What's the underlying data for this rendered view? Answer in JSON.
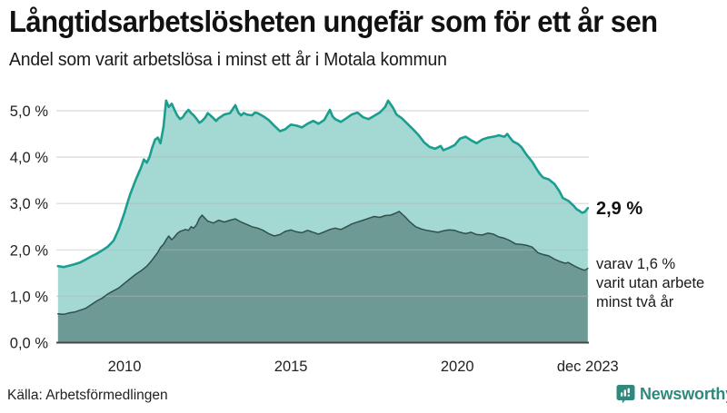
{
  "header": {
    "title": "Långtidsarbetslösheten ungefär som för ett år sen",
    "subtitle": "Andel som varit arbetslösa i minst ett år i Motala kommun"
  },
  "annotations": {
    "end_value_label": "2,9 %",
    "secondary_line1": "varav 1,6 %",
    "secondary_line2": "varit utan arbete",
    "secondary_line3": "minst två år"
  },
  "footer": {
    "source": "Källa: Arbetsförmedlingen",
    "brand_name": "Newsworthy"
  },
  "colors": {
    "accent_teal": "#1b9e8f",
    "area_teal_fill": "#1b9e8f",
    "dark_line": "#30504b",
    "area_dark_fill": "#234640",
    "grid": "#b4b4b4",
    "axis_baseline": "#474747",
    "tick_text": "#222222",
    "brand_teal": "#2e8a7c"
  },
  "chart_data": {
    "type": "area",
    "title": "Långtidsarbetslösheten ungefär som för ett år sen",
    "subtitle": "Andel som varit arbetslösa i minst ett år i Motala kommun",
    "xlabel": "",
    "ylabel": "",
    "ylim": [
      0,
      5.45
    ],
    "xlim": [
      2008.0,
      2023.92
    ],
    "grid": true,
    "legend_position": "none",
    "y_ticks": [
      {
        "label": "0,0 %",
        "value": 0
      },
      {
        "label": "1,0 %",
        "value": 1
      },
      {
        "label": "2,0 %",
        "value": 2
      },
      {
        "label": "3,0 %",
        "value": 3
      },
      {
        "label": "4,0 %",
        "value": 4
      },
      {
        "label": "5,0 %",
        "value": 5
      }
    ],
    "x_ticks": [
      {
        "label": "2010",
        "year": 2010
      },
      {
        "label": "2015",
        "year": 2015
      },
      {
        "label": "2020",
        "year": 2020
      },
      {
        "label": "dec 2023",
        "year": 2023.92
      }
    ],
    "series": [
      {
        "name": "Arbetslösa minst ett år",
        "end_value": 2.9,
        "line_color": "#1b9e8f",
        "line_width": 2.6,
        "fill_color": "#1b9e8f",
        "fill_opacity": 0.4,
        "points": [
          [
            2008.0,
            1.65
          ],
          [
            2008.17,
            1.63
          ],
          [
            2008.33,
            1.66
          ],
          [
            2008.5,
            1.69
          ],
          [
            2008.67,
            1.73
          ],
          [
            2008.83,
            1.79
          ],
          [
            2009.0,
            1.86
          ],
          [
            2009.17,
            1.92
          ],
          [
            2009.33,
            1.99
          ],
          [
            2009.5,
            2.07
          ],
          [
            2009.67,
            2.2
          ],
          [
            2009.83,
            2.45
          ],
          [
            2010.0,
            2.8
          ],
          [
            2010.08,
            3.0
          ],
          [
            2010.17,
            3.2
          ],
          [
            2010.33,
            3.5
          ],
          [
            2010.5,
            3.78
          ],
          [
            2010.58,
            3.95
          ],
          [
            2010.67,
            3.88
          ],
          [
            2010.75,
            4.0
          ],
          [
            2010.83,
            4.2
          ],
          [
            2010.92,
            4.38
          ],
          [
            2011.0,
            4.42
          ],
          [
            2011.08,
            4.3
          ],
          [
            2011.17,
            4.65
          ],
          [
            2011.25,
            5.22
          ],
          [
            2011.33,
            5.08
          ],
          [
            2011.42,
            5.15
          ],
          [
            2011.5,
            5.02
          ],
          [
            2011.58,
            4.9
          ],
          [
            2011.67,
            4.82
          ],
          [
            2011.75,
            4.86
          ],
          [
            2011.83,
            4.95
          ],
          [
            2011.92,
            5.02
          ],
          [
            2012.0,
            4.95
          ],
          [
            2012.08,
            4.9
          ],
          [
            2012.17,
            4.82
          ],
          [
            2012.25,
            4.74
          ],
          [
            2012.33,
            4.78
          ],
          [
            2012.42,
            4.85
          ],
          [
            2012.5,
            4.95
          ],
          [
            2012.58,
            4.9
          ],
          [
            2012.67,
            4.84
          ],
          [
            2012.75,
            4.78
          ],
          [
            2012.83,
            4.84
          ],
          [
            2012.92,
            4.88
          ],
          [
            2013.0,
            4.92
          ],
          [
            2013.17,
            4.95
          ],
          [
            2013.33,
            5.12
          ],
          [
            2013.42,
            4.96
          ],
          [
            2013.5,
            4.9
          ],
          [
            2013.58,
            4.95
          ],
          [
            2013.67,
            4.92
          ],
          [
            2013.83,
            4.9
          ],
          [
            2013.92,
            4.96
          ],
          [
            2014.0,
            4.95
          ],
          [
            2014.17,
            4.88
          ],
          [
            2014.33,
            4.8
          ],
          [
            2014.5,
            4.68
          ],
          [
            2014.67,
            4.56
          ],
          [
            2014.83,
            4.6
          ],
          [
            2015.0,
            4.7
          ],
          [
            2015.17,
            4.68
          ],
          [
            2015.33,
            4.64
          ],
          [
            2015.5,
            4.72
          ],
          [
            2015.67,
            4.78
          ],
          [
            2015.83,
            4.72
          ],
          [
            2016.0,
            4.8
          ],
          [
            2016.17,
            5.02
          ],
          [
            2016.25,
            4.88
          ],
          [
            2016.33,
            4.82
          ],
          [
            2016.5,
            4.76
          ],
          [
            2016.67,
            4.84
          ],
          [
            2016.83,
            4.92
          ],
          [
            2017.0,
            4.96
          ],
          [
            2017.17,
            4.86
          ],
          [
            2017.33,
            4.82
          ],
          [
            2017.5,
            4.89
          ],
          [
            2017.67,
            4.96
          ],
          [
            2017.83,
            5.08
          ],
          [
            2017.92,
            5.22
          ],
          [
            2018.08,
            5.05
          ],
          [
            2018.17,
            4.92
          ],
          [
            2018.33,
            4.84
          ],
          [
            2018.5,
            4.72
          ],
          [
            2018.67,
            4.6
          ],
          [
            2018.83,
            4.48
          ],
          [
            2019.0,
            4.32
          ],
          [
            2019.17,
            4.22
          ],
          [
            2019.33,
            4.18
          ],
          [
            2019.5,
            4.24
          ],
          [
            2019.58,
            4.15
          ],
          [
            2019.75,
            4.2
          ],
          [
            2019.92,
            4.26
          ],
          [
            2020.08,
            4.4
          ],
          [
            2020.25,
            4.44
          ],
          [
            2020.42,
            4.36
          ],
          [
            2020.58,
            4.3
          ],
          [
            2020.75,
            4.38
          ],
          [
            2020.92,
            4.42
          ],
          [
            2021.08,
            4.44
          ],
          [
            2021.25,
            4.47
          ],
          [
            2021.42,
            4.44
          ],
          [
            2021.5,
            4.5
          ],
          [
            2021.58,
            4.42
          ],
          [
            2021.67,
            4.34
          ],
          [
            2021.83,
            4.28
          ],
          [
            2021.92,
            4.22
          ],
          [
            2022.08,
            4.05
          ],
          [
            2022.25,
            3.9
          ],
          [
            2022.42,
            3.7
          ],
          [
            2022.5,
            3.62
          ],
          [
            2022.58,
            3.56
          ],
          [
            2022.75,
            3.52
          ],
          [
            2022.92,
            3.42
          ],
          [
            2023.08,
            3.25
          ],
          [
            2023.17,
            3.12
          ],
          [
            2023.33,
            3.06
          ],
          [
            2023.5,
            2.95
          ],
          [
            2023.58,
            2.88
          ],
          [
            2023.67,
            2.84
          ],
          [
            2023.75,
            2.8
          ],
          [
            2023.83,
            2.82
          ],
          [
            2023.92,
            2.9
          ]
        ]
      },
      {
        "name": "Arbetslösa minst två år",
        "end_value": 1.6,
        "line_color": "#30504b",
        "line_width": 1.5,
        "fill_color": "#234640",
        "fill_opacity": 0.42,
        "points": [
          [
            2008.0,
            0.62
          ],
          [
            2008.17,
            0.61
          ],
          [
            2008.33,
            0.64
          ],
          [
            2008.5,
            0.66
          ],
          [
            2008.67,
            0.7
          ],
          [
            2008.83,
            0.74
          ],
          [
            2009.0,
            0.82
          ],
          [
            2009.17,
            0.9
          ],
          [
            2009.33,
            0.96
          ],
          [
            2009.5,
            1.05
          ],
          [
            2009.67,
            1.12
          ],
          [
            2009.83,
            1.18
          ],
          [
            2010.0,
            1.28
          ],
          [
            2010.17,
            1.38
          ],
          [
            2010.33,
            1.47
          ],
          [
            2010.5,
            1.55
          ],
          [
            2010.67,
            1.65
          ],
          [
            2010.83,
            1.78
          ],
          [
            2011.0,
            1.95
          ],
          [
            2011.08,
            2.05
          ],
          [
            2011.17,
            2.12
          ],
          [
            2011.25,
            2.22
          ],
          [
            2011.33,
            2.3
          ],
          [
            2011.42,
            2.22
          ],
          [
            2011.5,
            2.28
          ],
          [
            2011.58,
            2.35
          ],
          [
            2011.67,
            2.4
          ],
          [
            2011.83,
            2.44
          ],
          [
            2011.92,
            2.42
          ],
          [
            2012.0,
            2.5
          ],
          [
            2012.08,
            2.47
          ],
          [
            2012.17,
            2.55
          ],
          [
            2012.25,
            2.68
          ],
          [
            2012.33,
            2.75
          ],
          [
            2012.42,
            2.68
          ],
          [
            2012.5,
            2.62
          ],
          [
            2012.67,
            2.58
          ],
          [
            2012.83,
            2.64
          ],
          [
            2013.0,
            2.6
          ],
          [
            2013.17,
            2.64
          ],
          [
            2013.33,
            2.67
          ],
          [
            2013.5,
            2.6
          ],
          [
            2013.67,
            2.55
          ],
          [
            2013.83,
            2.5
          ],
          [
            2014.0,
            2.47
          ],
          [
            2014.17,
            2.42
          ],
          [
            2014.33,
            2.35
          ],
          [
            2014.5,
            2.3
          ],
          [
            2014.67,
            2.33
          ],
          [
            2014.83,
            2.4
          ],
          [
            2015.0,
            2.43
          ],
          [
            2015.17,
            2.39
          ],
          [
            2015.33,
            2.37
          ],
          [
            2015.5,
            2.42
          ],
          [
            2015.67,
            2.38
          ],
          [
            2015.83,
            2.34
          ],
          [
            2016.0,
            2.39
          ],
          [
            2016.17,
            2.44
          ],
          [
            2016.33,
            2.47
          ],
          [
            2016.5,
            2.44
          ],
          [
            2016.67,
            2.5
          ],
          [
            2016.83,
            2.56
          ],
          [
            2017.0,
            2.6
          ],
          [
            2017.17,
            2.64
          ],
          [
            2017.33,
            2.68
          ],
          [
            2017.5,
            2.72
          ],
          [
            2017.67,
            2.7
          ],
          [
            2017.83,
            2.74
          ],
          [
            2018.0,
            2.75
          ],
          [
            2018.17,
            2.8
          ],
          [
            2018.25,
            2.83
          ],
          [
            2018.42,
            2.72
          ],
          [
            2018.58,
            2.6
          ],
          [
            2018.75,
            2.5
          ],
          [
            2018.92,
            2.45
          ],
          [
            2019.08,
            2.42
          ],
          [
            2019.25,
            2.4
          ],
          [
            2019.42,
            2.38
          ],
          [
            2019.58,
            2.41
          ],
          [
            2019.75,
            2.43
          ],
          [
            2019.92,
            2.42
          ],
          [
            2020.08,
            2.38
          ],
          [
            2020.25,
            2.35
          ],
          [
            2020.42,
            2.38
          ],
          [
            2020.58,
            2.33
          ],
          [
            2020.75,
            2.32
          ],
          [
            2020.92,
            2.36
          ],
          [
            2021.08,
            2.34
          ],
          [
            2021.25,
            2.28
          ],
          [
            2021.42,
            2.25
          ],
          [
            2021.58,
            2.2
          ],
          [
            2021.75,
            2.13
          ],
          [
            2021.92,
            2.12
          ],
          [
            2022.08,
            2.1
          ],
          [
            2022.25,
            2.06
          ],
          [
            2022.42,
            1.94
          ],
          [
            2022.58,
            1.9
          ],
          [
            2022.75,
            1.87
          ],
          [
            2022.92,
            1.8
          ],
          [
            2023.08,
            1.75
          ],
          [
            2023.25,
            1.71
          ],
          [
            2023.33,
            1.73
          ],
          [
            2023.5,
            1.66
          ],
          [
            2023.67,
            1.6
          ],
          [
            2023.83,
            1.56
          ],
          [
            2023.92,
            1.6
          ]
        ]
      }
    ]
  }
}
